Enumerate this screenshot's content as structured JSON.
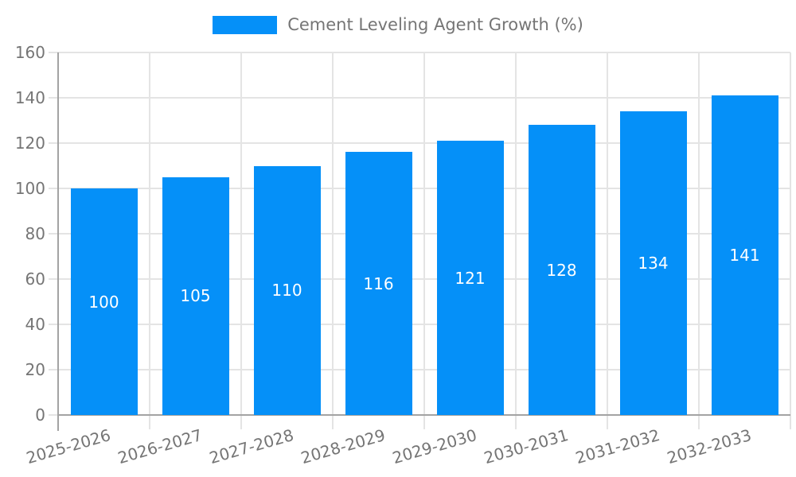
{
  "colors": {
    "bar": "#0590f8",
    "axis_text": "#757575",
    "grid": "#e4e4e4",
    "axis_line": "#a3a3a3",
    "bar_label": "#ffffff",
    "background": "#ffffff"
  },
  "chart_data": {
    "type": "bar",
    "title": "",
    "legend": "Cement Leveling Agent Growth (%)",
    "legend_position": "top",
    "categories": [
      "2025-2026",
      "2026-2027",
      "2027-2028",
      "2028-2029",
      "2029-2030",
      "2030-2031",
      "2031-2032",
      "2032-2033"
    ],
    "values": [
      100,
      105,
      110,
      116,
      121,
      128,
      134,
      141
    ],
    "value_labels": [
      "100",
      "105",
      "110",
      "116",
      "121",
      "128",
      "134",
      "141"
    ],
    "value_label_position": "inside-center",
    "xlabel": "",
    "ylabel": "",
    "ylim": [
      0,
      160
    ],
    "ytick_step": 20,
    "yticks": [
      0,
      20,
      40,
      60,
      80,
      100,
      120,
      140,
      160
    ],
    "grid": "both"
  }
}
